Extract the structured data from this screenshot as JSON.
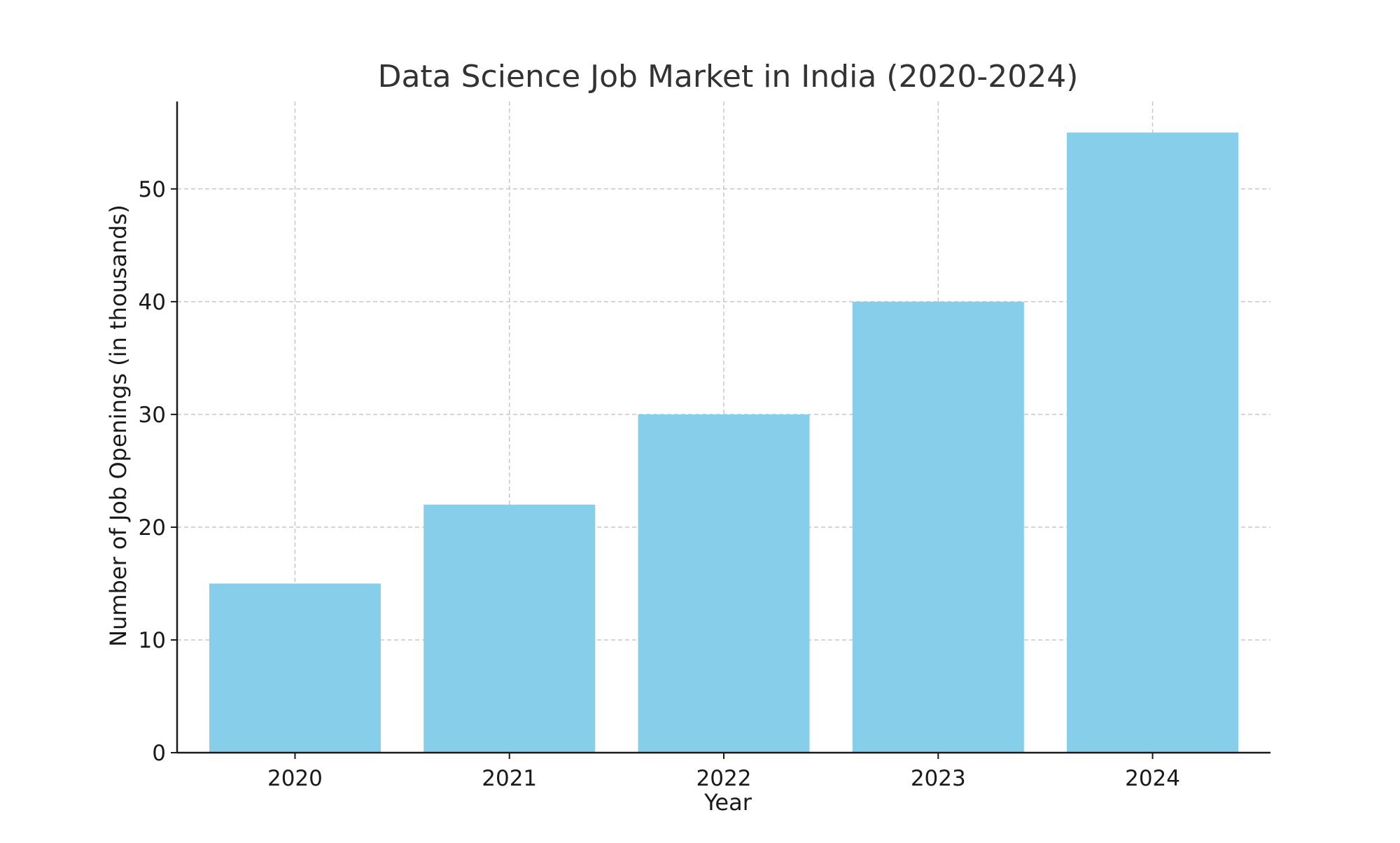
{
  "chart_data": {
    "type": "bar",
    "title": "Data Science Job Market in India (2020-2024)",
    "xlabel": "Year",
    "ylabel": "Number of Job Openings (in thousands)",
    "categories": [
      "2020",
      "2021",
      "2022",
      "2023",
      "2024"
    ],
    "values": [
      15,
      22,
      30,
      40,
      55
    ],
    "ylim": [
      0,
      57.75
    ],
    "yticks": [
      0,
      10,
      20,
      30,
      40,
      50
    ],
    "grid": true,
    "legend": null,
    "colors": {
      "bar": "#87ceeb",
      "grid": "#c8c8c8",
      "axis": "#1a1a1a",
      "title": "#333333",
      "text": "#1a1a1a"
    }
  }
}
